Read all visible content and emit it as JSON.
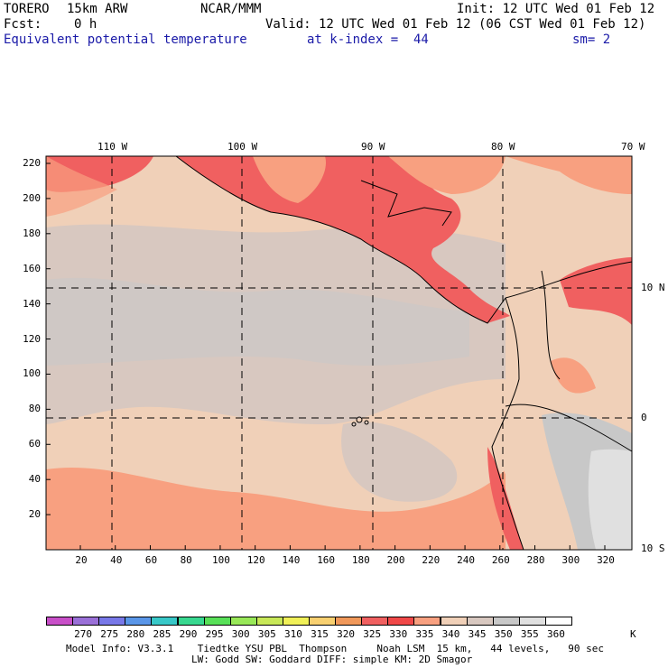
{
  "header": {
    "model": "TORERO",
    "resolution": "15km ARW",
    "org": "NCAR/MMM",
    "init": "Init: 12 UTC Wed 01 Feb 12",
    "fcst_label": "Fcst:",
    "fcst_value": "0 h",
    "valid": "Valid: 12 UTC Wed 01 Feb 12 (06 CST Wed 01 Feb 12)",
    "field": "Equivalent potential temperature",
    "level": "at k-index =  44",
    "smooth": "sm= 2"
  },
  "map": {
    "lon_labels": [
      "110 W",
      "100 W",
      "90 W",
      "80 W",
      "70 W"
    ],
    "lat_labels": [
      "10 N",
      "0",
      "10 S"
    ],
    "y_ticks": [
      "220",
      "200",
      "180",
      "160",
      "140",
      "120",
      "100",
      "80",
      "60",
      "40",
      "20"
    ],
    "x_ticks": [
      "20",
      "40",
      "60",
      "80",
      "100",
      "120",
      "140",
      "160",
      "180",
      "200",
      "220",
      "240",
      "260",
      "280",
      "300",
      "320"
    ]
  },
  "colorbar": {
    "unit": "K",
    "labels": [
      "270",
      "275",
      "280",
      "285",
      "290",
      "295",
      "300",
      "305",
      "310",
      "315",
      "320",
      "325",
      "330",
      "335",
      "340",
      "345",
      "350",
      "355",
      "360"
    ],
    "colors": [
      "#c84fc8",
      "#9a70d8",
      "#7878e8",
      "#5a96e8",
      "#38c8c8",
      "#38d890",
      "#58e058",
      "#98e858",
      "#c8e858",
      "#f0f058",
      "#f8d070",
      "#f0985a",
      "#f06060",
      "#f04848",
      "#f8a080",
      "#f0d0b8",
      "#d8c8c0",
      "#c8c8c8",
      "#e0e0e0",
      "#ffffff"
    ]
  },
  "footer": {
    "line1": "Model Info: V3.3.1    Tiedtke YSU PBL  Thompson     Noah LSM  15 km,   44 levels,   90 sec",
    "line2": "LW: Godd SW: Goddard DIFF: simple KM: 2D Smagor"
  }
}
